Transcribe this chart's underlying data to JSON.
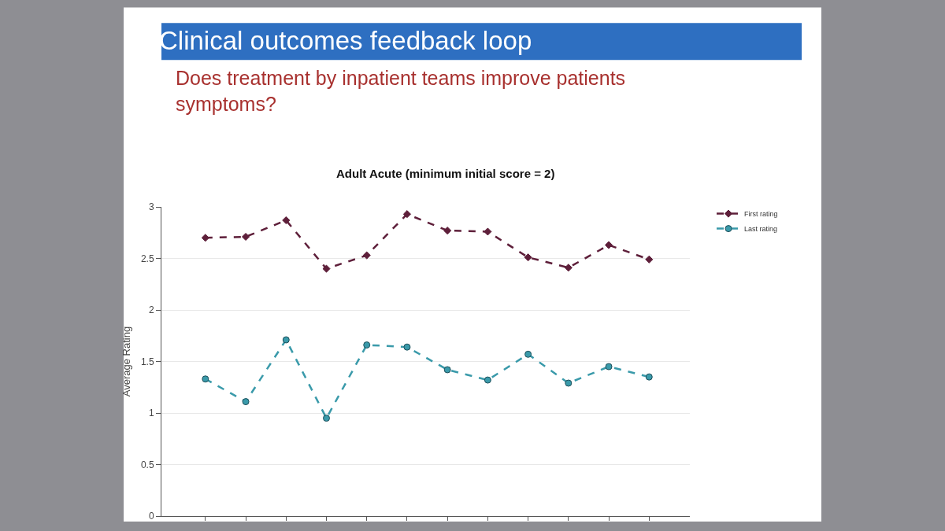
{
  "chart_data": {
    "type": "line",
    "title": "Clinical outcomes feedback loop",
    "subtitle": "Does treatment by inpatient teams improve patients symptoms?",
    "annotations": [
      "Adult Acute (minimum initial score = 2)"
    ],
    "ylabel": "Average Rating",
    "categories": [
      null,
      null,
      null,
      null,
      null,
      null,
      null,
      null,
      null,
      null,
      null,
      null
    ],
    "series": [
      {
        "name": "First rating",
        "color": "#5e1f3a",
        "marker": "diamond",
        "values": [
          2.7,
          2.71,
          2.87,
          2.4,
          2.53,
          2.93,
          2.77,
          2.76,
          2.51,
          2.41,
          2.63,
          2.49
        ]
      },
      {
        "name": "Last rating",
        "color": "#3a9aaa",
        "marker": "circle",
        "values": [
          1.33,
          1.11,
          1.71,
          0.95,
          1.66,
          1.64,
          1.42,
          1.32,
          1.57,
          1.29,
          1.45,
          1.35
        ]
      }
    ],
    "ylim": [
      0,
      3
    ],
    "yticks": [
      0,
      0.5,
      1,
      1.5,
      2,
      2.5,
      3
    ],
    "grid": "y",
    "legend": "top right",
    "line_style": "dashed"
  }
}
